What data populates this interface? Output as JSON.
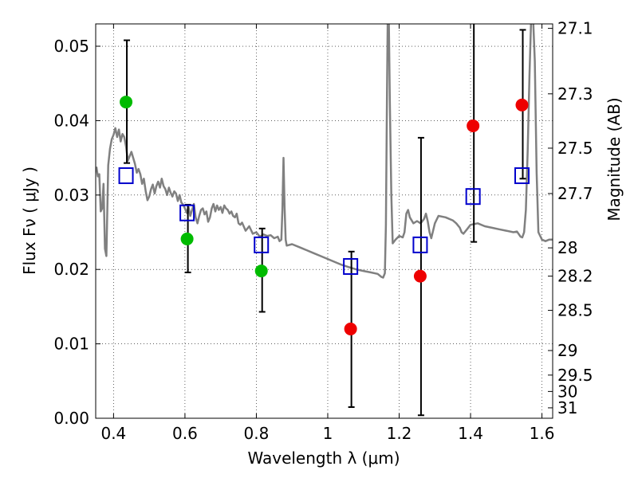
{
  "chart_data": {
    "type": "scatter",
    "xlabel": "Wavelength  λ (μm)",
    "ylabel": "Flux  Fν  ( μJy )",
    "y2label": "Magnitude (AB)",
    "xlim": [
      0.35,
      1.63
    ],
    "ylim": [
      0.0,
      0.053
    ],
    "grid": true,
    "x_ticks": [
      0.4,
      0.6,
      0.8,
      1.0,
      1.2,
      1.4,
      1.6
    ],
    "x_tick_labels": [
      "0.4",
      "0.6",
      "0.8",
      "1",
      "1.2",
      "1.4",
      "1.6"
    ],
    "y_ticks": [
      0.0,
      0.01,
      0.02,
      0.03,
      0.04,
      0.05
    ],
    "y_tick_labels": [
      "0.00",
      "0.01",
      "0.02",
      "0.03",
      "0.04",
      "0.05"
    ],
    "y2_ticks": [
      {
        "label": "27.1",
        "flux": 0.0524
      },
      {
        "label": "27.3",
        "flux": 0.0436
      },
      {
        "label": "27.5",
        "flux": 0.0363
      },
      {
        "label": "27.7",
        "flux": 0.0302
      },
      {
        "label": "28",
        "flux": 0.0229
      },
      {
        "label": "28.2",
        "flux": 0.0191
      },
      {
        "label": "28.5",
        "flux": 0.0145
      },
      {
        "label": "29",
        "flux": 0.0091
      },
      {
        "label": "29.5",
        "flux": 0.0058
      },
      {
        "label": "30",
        "flux": 0.0036
      },
      {
        "label": "31",
        "flux": 0.0014
      }
    ],
    "sed_color": "#808080",
    "sed_curve": [
      [
        0.352,
        0.0338
      ],
      [
        0.356,
        0.0325
      ],
      [
        0.36,
        0.0328
      ],
      [
        0.364,
        0.0278
      ],
      [
        0.368,
        0.0282
      ],
      [
        0.372,
        0.0315
      ],
      [
        0.376,
        0.0228
      ],
      [
        0.38,
        0.0218
      ],
      [
        0.385,
        0.034
      ],
      [
        0.39,
        0.0362
      ],
      [
        0.395,
        0.0375
      ],
      [
        0.4,
        0.0381
      ],
      [
        0.405,
        0.039
      ],
      [
        0.41,
        0.0378
      ],
      [
        0.415,
        0.0388
      ],
      [
        0.42,
        0.0372
      ],
      [
        0.425,
        0.0382
      ],
      [
        0.43,
        0.0378
      ],
      [
        0.435,
        0.0365
      ],
      [
        0.44,
        0.0346
      ],
      [
        0.445,
        0.0352
      ],
      [
        0.45,
        0.0358
      ],
      [
        0.455,
        0.035
      ],
      [
        0.46,
        0.0342
      ],
      [
        0.465,
        0.033
      ],
      [
        0.47,
        0.0335
      ],
      [
        0.475,
        0.0328
      ],
      [
        0.48,
        0.0315
      ],
      [
        0.485,
        0.0322
      ],
      [
        0.49,
        0.0305
      ],
      [
        0.495,
        0.0293
      ],
      [
        0.5,
        0.0298
      ],
      [
        0.505,
        0.0308
      ],
      [
        0.51,
        0.0314
      ],
      [
        0.515,
        0.0302
      ],
      [
        0.52,
        0.0312
      ],
      [
        0.525,
        0.0318
      ],
      [
        0.53,
        0.031
      ],
      [
        0.535,
        0.0322
      ],
      [
        0.54,
        0.0312
      ],
      [
        0.545,
        0.0308
      ],
      [
        0.55,
        0.03
      ],
      [
        0.555,
        0.031
      ],
      [
        0.56,
        0.0303
      ],
      [
        0.565,
        0.0298
      ],
      [
        0.57,
        0.0305
      ],
      [
        0.575,
        0.0302
      ],
      [
        0.58,
        0.0292
      ],
      [
        0.585,
        0.03
      ],
      [
        0.59,
        0.029
      ],
      [
        0.595,
        0.0287
      ],
      [
        0.6,
        0.0282
      ],
      [
        0.605,
        0.0276
      ],
      [
        0.61,
        0.0284
      ],
      [
        0.615,
        0.0272
      ],
      [
        0.62,
        0.028
      ],
      [
        0.625,
        0.0288
      ],
      [
        0.63,
        0.027
      ],
      [
        0.635,
        0.0262
      ],
      [
        0.64,
        0.0272
      ],
      [
        0.645,
        0.028
      ],
      [
        0.65,
        0.0282
      ],
      [
        0.655,
        0.0274
      ],
      [
        0.66,
        0.0278
      ],
      [
        0.665,
        0.0264
      ],
      [
        0.67,
        0.027
      ],
      [
        0.675,
        0.0282
      ],
      [
        0.68,
        0.0288
      ],
      [
        0.685,
        0.0278
      ],
      [
        0.69,
        0.0286
      ],
      [
        0.695,
        0.028
      ],
      [
        0.7,
        0.0284
      ],
      [
        0.705,
        0.0276
      ],
      [
        0.71,
        0.0286
      ],
      [
        0.715,
        0.0282
      ],
      [
        0.72,
        0.028
      ],
      [
        0.725,
        0.0275
      ],
      [
        0.73,
        0.0278
      ],
      [
        0.735,
        0.0272
      ],
      [
        0.74,
        0.027
      ],
      [
        0.745,
        0.0275
      ],
      [
        0.75,
        0.0262
      ],
      [
        0.755,
        0.026
      ],
      [
        0.76,
        0.0263
      ],
      [
        0.77,
        0.0252
      ],
      [
        0.78,
        0.0258
      ],
      [
        0.79,
        0.0248
      ],
      [
        0.8,
        0.025
      ],
      [
        0.81,
        0.0244
      ],
      [
        0.82,
        0.0247
      ],
      [
        0.83,
        0.0245
      ],
      [
        0.84,
        0.0246
      ],
      [
        0.85,
        0.0242
      ],
      [
        0.86,
        0.0244
      ],
      [
        0.865,
        0.0238
      ],
      [
        0.87,
        0.024
      ],
      [
        0.873,
        0.028
      ],
      [
        0.876,
        0.035
      ],
      [
        0.879,
        0.0285
      ],
      [
        0.882,
        0.024
      ],
      [
        0.885,
        0.0232
      ],
      [
        0.9,
        0.0234
      ],
      [
        0.92,
        0.023
      ],
      [
        0.94,
        0.0226
      ],
      [
        0.96,
        0.0222
      ],
      [
        0.98,
        0.0218
      ],
      [
        1.0,
        0.0214
      ],
      [
        1.02,
        0.021
      ],
      [
        1.04,
        0.0206
      ],
      [
        1.06,
        0.0203
      ],
      [
        1.08,
        0.02
      ],
      [
        1.1,
        0.0198
      ],
      [
        1.12,
        0.0196
      ],
      [
        1.14,
        0.0194
      ],
      [
        1.15,
        0.019
      ],
      [
        1.155,
        0.0189
      ],
      [
        1.16,
        0.0195
      ],
      [
        1.163,
        0.026
      ],
      [
        1.166,
        0.044
      ],
      [
        1.168,
        0.054
      ],
      [
        1.171,
        0.054
      ],
      [
        1.174,
        0.042
      ],
      [
        1.178,
        0.03
      ],
      [
        1.182,
        0.0235
      ],
      [
        1.19,
        0.024
      ],
      [
        1.2,
        0.0245
      ],
      [
        1.21,
        0.0243
      ],
      [
        1.215,
        0.025
      ],
      [
        1.22,
        0.0275
      ],
      [
        1.225,
        0.028
      ],
      [
        1.23,
        0.027
      ],
      [
        1.24,
        0.0262
      ],
      [
        1.25,
        0.0265
      ],
      [
        1.26,
        0.0262
      ],
      [
        1.27,
        0.0268
      ],
      [
        1.275,
        0.0275
      ],
      [
        1.28,
        0.0265
      ],
      [
        1.285,
        0.025
      ],
      [
        1.29,
        0.0242
      ],
      [
        1.3,
        0.0262
      ],
      [
        1.31,
        0.0272
      ],
      [
        1.33,
        0.027
      ],
      [
        1.35,
        0.0266
      ],
      [
        1.36,
        0.0262
      ],
      [
        1.37,
        0.0256
      ],
      [
        1.375,
        0.025
      ],
      [
        1.38,
        0.0248
      ],
      [
        1.39,
        0.0254
      ],
      [
        1.4,
        0.026
      ],
      [
        1.42,
        0.0262
      ],
      [
        1.44,
        0.0258
      ],
      [
        1.46,
        0.0256
      ],
      [
        1.48,
        0.0254
      ],
      [
        1.5,
        0.0252
      ],
      [
        1.52,
        0.025
      ],
      [
        1.53,
        0.0251
      ],
      [
        1.54,
        0.0244
      ],
      [
        1.545,
        0.0243
      ],
      [
        1.55,
        0.025
      ],
      [
        1.555,
        0.028
      ],
      [
        1.56,
        0.036
      ],
      [
        1.565,
        0.046
      ],
      [
        1.57,
        0.054
      ],
      [
        1.575,
        0.054
      ],
      [
        1.58,
        0.048
      ],
      [
        1.585,
        0.033
      ],
      [
        1.59,
        0.025
      ],
      [
        1.6,
        0.024
      ],
      [
        1.61,
        0.0238
      ],
      [
        1.62,
        0.024
      ],
      [
        1.63,
        0.024
      ]
    ],
    "observed_points": [
      {
        "x": 0.435,
        "y": 0.0425,
        "color": "#00bb00"
      },
      {
        "x": 0.606,
        "y": 0.0241,
        "color": "#00bb00"
      },
      {
        "x": 0.814,
        "y": 0.0198,
        "color": "#00bb00"
      },
      {
        "x": 1.064,
        "y": 0.012,
        "color": "#ee0000"
      },
      {
        "x": 1.259,
        "y": 0.0191,
        "color": "#ee0000"
      },
      {
        "x": 1.407,
        "y": 0.0393,
        "color": "#ee0000"
      },
      {
        "x": 1.544,
        "y": 0.0421,
        "color": "#ee0000"
      }
    ],
    "model_points": [
      {
        "x": 0.435,
        "y": 0.0326,
        "err_low": 0.0343,
        "err_high": 0.0508
      },
      {
        "x": 0.606,
        "y": 0.0276,
        "err_low": 0.0196,
        "err_high": 0.0287
      },
      {
        "x": 0.814,
        "y": 0.0233,
        "err_low": 0.0143,
        "err_high": 0.0255
      },
      {
        "x": 1.064,
        "y": 0.0204,
        "err_low": 0.0015,
        "err_high": 0.0224
      },
      {
        "x": 1.259,
        "y": 0.0233,
        "err_low": 0.0004,
        "err_high": 0.0377
      },
      {
        "x": 1.407,
        "y": 0.0298,
        "err_low": 0.0237,
        "err_high": 0.054
      },
      {
        "x": 1.544,
        "y": 0.0326,
        "err_low": 0.0322,
        "err_high": 0.0522
      }
    ],
    "model_color": "#0000cc"
  }
}
